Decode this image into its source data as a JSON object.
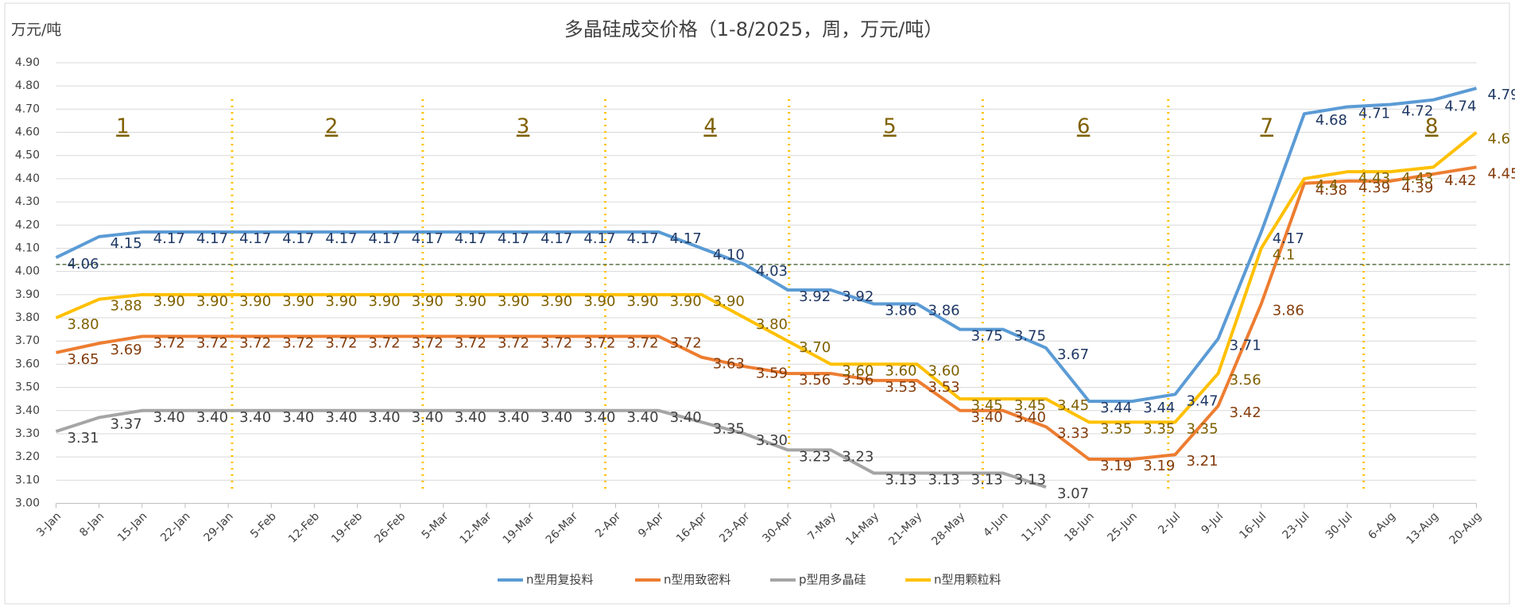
{
  "chart_data": {
    "type": "line",
    "title": "多晶硅成交价格（1-8/2025，周，万元/吨）",
    "y_axis_label": "万元/吨",
    "categories": [
      "3-Jan",
      "8-Jan",
      "15-Jan",
      "22-Jan",
      "29-Jan",
      "5-Feb",
      "12-Feb",
      "19-Feb",
      "26-Feb",
      "5-Mar",
      "12-Mar",
      "19-Mar",
      "26-Mar",
      "2-Apr",
      "9-Apr",
      "16-Apr",
      "23-Apr",
      "30-Apr",
      "7-May",
      "14-May",
      "21-May",
      "28-May",
      "4-Jun",
      "11-Jun",
      "18-Jun",
      "25-Jun",
      "2-Jul",
      "9-Jul",
      "16-Jul",
      "23-Jul",
      "30-Jul",
      "6-Aug",
      "13-Aug",
      "20-Aug"
    ],
    "month_labels": [
      "1",
      "2",
      "3",
      "4",
      "5",
      "6",
      "7",
      "8"
    ],
    "ylim": [
      3.0,
      4.9
    ],
    "yticks": [
      {
        "value": 3.0,
        "label": "3.00"
      },
      {
        "value": 3.1,
        "label": "3.10"
      },
      {
        "value": 3.2,
        "label": "3.20"
      },
      {
        "value": 3.3,
        "label": "3.30"
      },
      {
        "value": 3.4,
        "label": "3.40"
      },
      {
        "value": 3.5,
        "label": "3.50"
      },
      {
        "value": 3.6,
        "label": "3.60"
      },
      {
        "value": 3.7,
        "label": "3.70"
      },
      {
        "value": 3.8,
        "label": "3.80"
      },
      {
        "value": 3.9,
        "label": "3.90"
      },
      {
        "value": 4.0,
        "label": "4.00"
      },
      {
        "value": 4.1,
        "label": "4.10"
      },
      {
        "value": 4.2,
        "label": "4.20"
      },
      {
        "value": 4.3,
        "label": "4.30"
      },
      {
        "value": 4.4,
        "label": "4.40"
      },
      {
        "value": 4.5,
        "label": "4.50"
      },
      {
        "value": 4.6,
        "label": "4.60"
      },
      {
        "value": 4.7,
        "label": "4.70"
      },
      {
        "value": 4.8,
        "label": "4.80"
      },
      {
        "value": 4.9,
        "label": "4.90"
      }
    ],
    "grid": true,
    "reference_line": 4.03,
    "legend": "bottom",
    "series": [
      {
        "name": "n型用复投料",
        "color": "#5b9bd5",
        "label_color": "#1f3864",
        "values": [
          4.06,
          4.15,
          4.17,
          4.17,
          4.17,
          4.17,
          4.17,
          4.17,
          4.17,
          4.17,
          4.17,
          4.17,
          4.17,
          4.17,
          4.17,
          4.1,
          4.03,
          3.92,
          3.92,
          3.86,
          3.86,
          3.75,
          3.75,
          3.67,
          3.44,
          3.44,
          3.47,
          3.71,
          4.17,
          4.68,
          4.71,
          4.72,
          4.74,
          4.79
        ],
        "value_labels": [
          "4.06",
          "4.15",
          "4.17",
          "4.17",
          "4.17",
          "4.17",
          "4.17",
          "4.17",
          "4.17",
          "4.17",
          "4.17",
          "4.17",
          "4.17",
          "4.17",
          "4.17",
          "4.10",
          "4.03",
          "3.92",
          "3.92",
          "3.86",
          "3.86",
          "3.75",
          "3.75",
          "3.67",
          "3.44",
          "3.44",
          "3.47",
          "3.71",
          "4.17",
          "4.68",
          "4.71",
          "4.72",
          "4.74",
          "4.79"
        ]
      },
      {
        "name": "n型用致密料",
        "color": "#ed7d31",
        "label_color": "#843c0c",
        "values": [
          3.65,
          3.69,
          3.72,
          3.72,
          3.72,
          3.72,
          3.72,
          3.72,
          3.72,
          3.72,
          3.72,
          3.72,
          3.72,
          3.72,
          3.72,
          3.63,
          3.59,
          3.56,
          3.56,
          3.53,
          3.53,
          3.4,
          3.4,
          3.33,
          3.19,
          3.19,
          3.21,
          3.42,
          3.86,
          4.38,
          4.39,
          4.39,
          4.42,
          4.45
        ],
        "value_labels": [
          "3.65",
          "3.69",
          "3.72",
          "3.72",
          "3.72",
          "3.72",
          "3.72",
          "3.72",
          "3.72",
          "3.72",
          "3.72",
          "3.72",
          "3.72",
          "3.72",
          "3.72",
          "3.63",
          "3.59",
          "3.56",
          "3.56",
          "3.53",
          "3.53",
          "3.40",
          "3.40",
          "3.33",
          "3.19",
          "3.19",
          "3.21",
          "3.42",
          "3.86",
          "4.38",
          "4.39",
          "4.39",
          "4.42",
          "4.45"
        ]
      },
      {
        "name": "p型用多晶硅",
        "color": "#a5a5a5",
        "label_color": "#404040",
        "values": [
          3.31,
          3.37,
          3.4,
          3.4,
          3.4,
          3.4,
          3.4,
          3.4,
          3.4,
          3.4,
          3.4,
          3.4,
          3.4,
          3.4,
          3.4,
          3.35,
          3.3,
          3.23,
          3.23,
          3.13,
          3.13,
          3.13,
          3.13,
          3.07,
          null,
          null,
          null,
          null,
          null,
          null,
          null,
          null,
          null,
          null
        ],
        "value_labels": [
          "3.31",
          "3.37",
          "3.40",
          "3.40",
          "3.40",
          "3.40",
          "3.40",
          "3.40",
          "3.40",
          "3.40",
          "3.40",
          "3.40",
          "3.40",
          "3.40",
          "3.40",
          "3.35",
          "3.30",
          "3.23",
          "3.23",
          "3.13",
          "3.13",
          "3.13",
          "3.13",
          "3.07",
          null,
          null,
          null,
          null,
          null,
          null,
          null,
          null,
          null,
          null
        ]
      },
      {
        "name": "n型用颗粒料",
        "color": "#ffc000",
        "label_color": "#7f6000",
        "values": [
          3.8,
          3.88,
          3.9,
          3.9,
          3.9,
          3.9,
          3.9,
          3.9,
          3.9,
          3.9,
          3.9,
          3.9,
          3.9,
          3.9,
          3.9,
          3.9,
          3.8,
          3.7,
          3.6,
          3.6,
          3.6,
          3.45,
          3.45,
          3.45,
          3.35,
          3.35,
          3.35,
          3.56,
          4.1,
          4.4,
          4.43,
          4.43,
          4.45,
          4.6
        ],
        "value_labels": [
          "3.80",
          "3.88",
          "3.90",
          "3.90",
          "3.90",
          "3.90",
          "3.90",
          "3.90",
          "3.90",
          "3.90",
          "3.90",
          "3.90",
          "3.90",
          "3.90",
          "3.90",
          "3.90",
          "3.80",
          "3.70",
          "3.60",
          "3.60",
          "3.60",
          "3.45",
          "3.45",
          "3.45",
          "3.35",
          "3.35",
          "3.35",
          "3.56",
          "4.1",
          "4.4",
          "4.43",
          "4.43",
          null,
          "4.6"
        ]
      }
    ]
  }
}
